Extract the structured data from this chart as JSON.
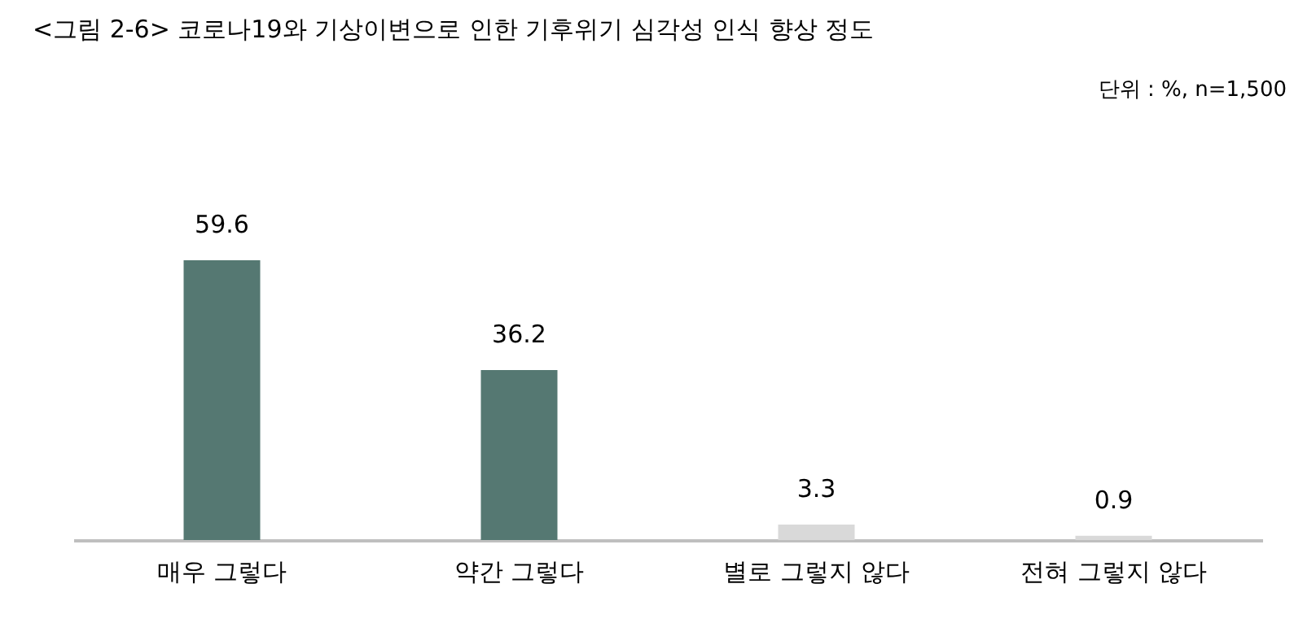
{
  "chart_data": {
    "type": "bar",
    "title": "<그림 2-6> 코로나19와 기상이변으로 인한 기후위기 심각성 인식 향상 정도",
    "annotations": [
      "단위 : %, n=1,500"
    ],
    "categories": [
      "매우 그렇다",
      "약간 그렇다",
      "별로 그렇지 않다",
      "전혀 그렇지 않다"
    ],
    "values": [
      59.6,
      36.2,
      3.3,
      0.9
    ],
    "colors": [
      "#557872",
      "#557872",
      "#d9d9d9",
      "#d9d9d9"
    ],
    "data_labels": true,
    "tick_labels": "x",
    "grid": false
  }
}
